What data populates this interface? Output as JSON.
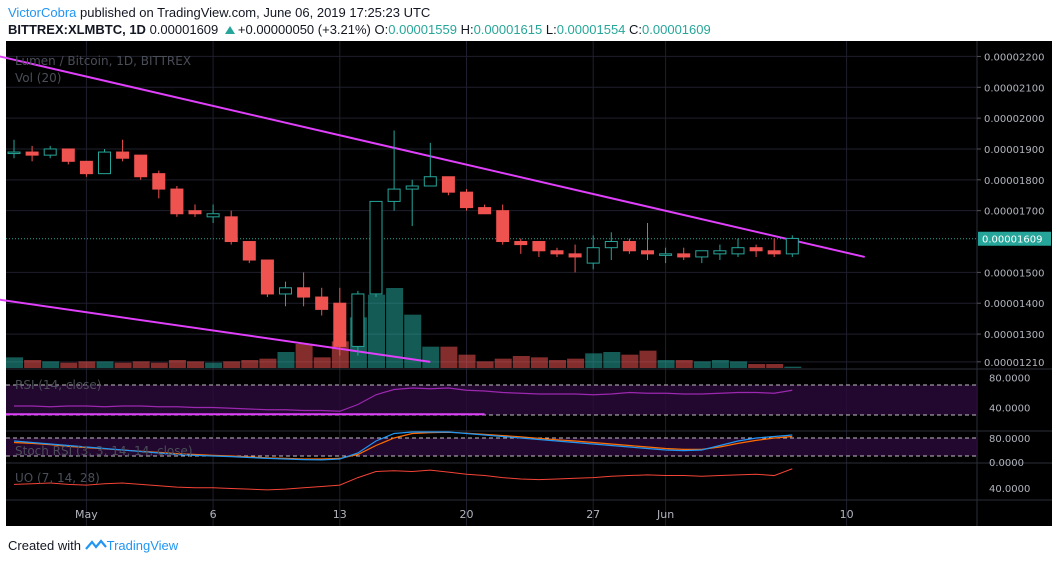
{
  "header": {
    "author": "VictorCobra",
    "published": "published on TradingView.com, June 06, 2019 17:25:23 UTC",
    "symbol": "BITTREX:XLMBTC, 1D",
    "last": "0.00001609",
    "change": "+0.00000050 (+3.21%)",
    "o_label": "O:",
    "o": "0.00001559",
    "h_label": "H:",
    "h": "0.00001615",
    "l_label": "L:",
    "l": "0.00001554",
    "c_label": "C:",
    "c": "0.00001609"
  },
  "footer": {
    "created": "Created with",
    "brand": "TradingView"
  },
  "colors": {
    "up": "#26a69a",
    "down": "#ef5350",
    "trendline": "#e040fb",
    "rsi": "#9c27b0",
    "stoch_k": "#2196f3",
    "stoch_d": "#ff6d00",
    "uo": "#f44336"
  },
  "chart_data": {
    "type": "candlestick",
    "title": "Lumen / Bitcoin, 1D, BITTREX",
    "volume_label": "Vol (20)",
    "price_ticks": [
      "0.00002200",
      "0.00002100",
      "0.00002000",
      "0.00001900",
      "0.00001800",
      "0.00001700",
      "0.00001609",
      "0.00001500",
      "0.00001400",
      "0.00001300",
      "0.00001210"
    ],
    "price_tick_values": [
      2.2e-05,
      2.1e-05,
      2e-05,
      1.9e-05,
      1.8e-05,
      1.7e-05,
      1.609e-05,
      1.5e-05,
      1.4e-05,
      1.3e-05,
      1.21e-05
    ],
    "last_price_label": "0.00001609",
    "ylim": [
      1.19e-05,
      2.25e-05
    ],
    "x_labels": [
      "May",
      "6",
      "13",
      "20",
      "27",
      "Jun",
      "10"
    ],
    "x_label_index": [
      4,
      11,
      18,
      25,
      32,
      36,
      46
    ],
    "candles": [
      {
        "o": 1.89,
        "h": 1.93,
        "l": 1.87,
        "c": 1.89
      },
      {
        "o": 1.89,
        "h": 1.91,
        "l": 1.86,
        "c": 1.88
      },
      {
        "o": 1.88,
        "h": 1.91,
        "l": 1.87,
        "c": 1.9
      },
      {
        "o": 1.9,
        "h": 1.9,
        "l": 1.85,
        "c": 1.86
      },
      {
        "o": 1.86,
        "h": 1.86,
        "l": 1.81,
        "c": 1.82
      },
      {
        "o": 1.82,
        "h": 1.9,
        "l": 1.82,
        "c": 1.89
      },
      {
        "o": 1.89,
        "h": 1.93,
        "l": 1.86,
        "c": 1.87
      },
      {
        "o": 1.88,
        "h": 1.88,
        "l": 1.8,
        "c": 1.81
      },
      {
        "o": 1.82,
        "h": 1.83,
        "l": 1.74,
        "c": 1.77
      },
      {
        "o": 1.77,
        "h": 1.78,
        "l": 1.68,
        "c": 1.69
      },
      {
        "o": 1.7,
        "h": 1.72,
        "l": 1.68,
        "c": 1.69
      },
      {
        "o": 1.68,
        "h": 1.72,
        "l": 1.66,
        "c": 1.69
      },
      {
        "o": 1.68,
        "h": 1.7,
        "l": 1.59,
        "c": 1.6
      },
      {
        "o": 1.6,
        "h": 1.6,
        "l": 1.53,
        "c": 1.54
      },
      {
        "o": 1.54,
        "h": 1.54,
        "l": 1.42,
        "c": 1.43
      },
      {
        "o": 1.43,
        "h": 1.47,
        "l": 1.39,
        "c": 1.45
      },
      {
        "o": 1.45,
        "h": 1.5,
        "l": 1.39,
        "c": 1.42
      },
      {
        "o": 1.42,
        "h": 1.45,
        "l": 1.36,
        "c": 1.38
      },
      {
        "o": 1.4,
        "h": 1.45,
        "l": 1.23,
        "c": 1.26
      },
      {
        "o": 1.26,
        "h": 1.44,
        "l": 1.23,
        "c": 1.43
      },
      {
        "o": 1.43,
        "h": 1.73,
        "l": 1.42,
        "c": 1.73
      },
      {
        "o": 1.73,
        "h": 1.96,
        "l": 1.7,
        "c": 1.77
      },
      {
        "o": 1.77,
        "h": 1.8,
        "l": 1.65,
        "c": 1.78
      },
      {
        "o": 1.78,
        "h": 1.92,
        "l": 1.78,
        "c": 1.81
      },
      {
        "o": 1.81,
        "h": 1.81,
        "l": 1.75,
        "c": 1.76
      },
      {
        "o": 1.76,
        "h": 1.77,
        "l": 1.7,
        "c": 1.71
      },
      {
        "o": 1.71,
        "h": 1.72,
        "l": 1.69,
        "c": 1.69
      },
      {
        "o": 1.7,
        "h": 1.72,
        "l": 1.59,
        "c": 1.6
      },
      {
        "o": 1.6,
        "h": 1.61,
        "l": 1.56,
        "c": 1.59
      },
      {
        "o": 1.6,
        "h": 1.6,
        "l": 1.55,
        "c": 1.57
      },
      {
        "o": 1.57,
        "h": 1.58,
        "l": 1.55,
        "c": 1.56
      },
      {
        "o": 1.56,
        "h": 1.59,
        "l": 1.5,
        "c": 1.55
      },
      {
        "o": 1.53,
        "h": 1.62,
        "l": 1.51,
        "c": 1.58
      },
      {
        "o": 1.58,
        "h": 1.63,
        "l": 1.54,
        "c": 1.6
      },
      {
        "o": 1.6,
        "h": 1.61,
        "l": 1.56,
        "c": 1.57
      },
      {
        "o": 1.57,
        "h": 1.66,
        "l": 1.54,
        "c": 1.56
      },
      {
        "o": 1.56,
        "h": 1.58,
        "l": 1.53,
        "c": 1.56
      },
      {
        "o": 1.56,
        "h": 1.58,
        "l": 1.54,
        "c": 1.55
      },
      {
        "o": 1.55,
        "h": 1.57,
        "l": 1.53,
        "c": 1.57
      },
      {
        "o": 1.56,
        "h": 1.59,
        "l": 1.54,
        "c": 1.57
      },
      {
        "o": 1.56,
        "h": 1.61,
        "l": 1.55,
        "c": 1.58
      },
      {
        "o": 1.58,
        "h": 1.59,
        "l": 1.55,
        "c": 1.57
      },
      {
        "o": 1.57,
        "h": 1.61,
        "l": 1.55,
        "c": 1.56
      },
      {
        "o": 1.56,
        "h": 1.62,
        "l": 1.55,
        "c": 1.61
      }
    ],
    "price_scale": 1e-05,
    "volume": [
      8,
      6,
      5,
      4,
      5,
      5,
      4,
      5,
      4,
      6,
      5,
      4,
      5,
      6,
      7,
      12,
      18,
      8,
      20,
      38,
      55,
      60,
      40,
      16,
      16,
      10,
      5,
      7,
      9,
      8,
      6,
      7,
      11,
      12,
      10,
      13,
      6,
      6,
      5,
      6,
      5,
      3,
      3,
      1
    ],
    "trendlines": [
      {
        "x0": -3,
        "y0": 2.23,
        "x1": 47,
        "y1": 1.55
      },
      {
        "x0": -3,
        "y0": 1.43,
        "x1": 23,
        "y1": 1.21
      }
    ],
    "rsi": {
      "label": "RSI (14, close)",
      "ticks": [
        "80.0000",
        "40.0000"
      ],
      "band": [
        70,
        30
      ],
      "ylim": [
        10,
        90
      ],
      "values": [
        42,
        42,
        41,
        42,
        42,
        41,
        42,
        42,
        41,
        41,
        40,
        40,
        39,
        38,
        37,
        37,
        36,
        36,
        35,
        44,
        57,
        64,
        66,
        65,
        66,
        63,
        62,
        60,
        59,
        58,
        58,
        58,
        57,
        58,
        60,
        59,
        59,
        58,
        58,
        59,
        60,
        60,
        59,
        63
      ],
      "hline": 31
    },
    "stoch_rsi": {
      "label": "Stoch RSI (3, 3, 14, 14, close)",
      "ticks": [
        "80.0000",
        "0.0000"
      ],
      "band": [
        80,
        20
      ],
      "ylim": [
        0,
        100
      ],
      "k": [
        70,
        65,
        60,
        55,
        50,
        45,
        40,
        35,
        30,
        25,
        22,
        20,
        18,
        15,
        12,
        10,
        8,
        7,
        10,
        30,
        70,
        95,
        100,
        100,
        100,
        95,
        90,
        85,
        80,
        75,
        70,
        65,
        60,
        55,
        50,
        45,
        40,
        38,
        40,
        55,
        70,
        80,
        85,
        90
      ],
      "d": [
        65,
        62,
        58,
        52,
        48,
        44,
        40,
        36,
        32,
        28,
        25,
        22,
        20,
        17,
        14,
        12,
        10,
        10,
        12,
        25,
        55,
        80,
        95,
        98,
        99,
        96,
        92,
        88,
        84,
        79,
        74,
        70,
        65,
        60,
        55,
        50,
        45,
        42,
        42,
        50,
        62,
        72,
        80,
        85
      ]
    },
    "uo": {
      "label": "UO (7, 14, 28)",
      "ticks": [
        "40.0000"
      ],
      "ylim": [
        25,
        75
      ],
      "values": [
        45,
        46,
        47,
        45,
        44,
        46,
        47,
        45,
        43,
        41,
        40,
        40,
        39,
        38,
        37,
        38,
        40,
        42,
        44,
        55,
        64,
        65,
        64,
        66,
        63,
        60,
        58,
        55,
        53,
        52,
        53,
        54,
        55,
        57,
        58,
        59,
        58,
        58,
        57,
        58,
        59,
        60,
        58,
        68
      ]
    },
    "grid": true
  }
}
